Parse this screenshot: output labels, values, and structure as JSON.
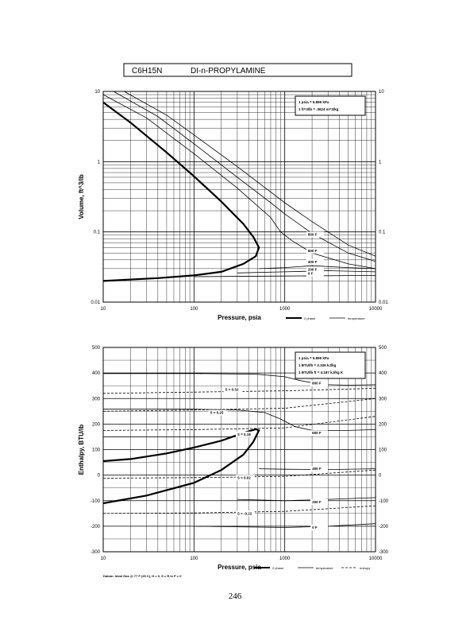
{
  "header": {
    "formula": "C6H15N",
    "name": "DI-n-PROPYLAMINE"
  },
  "page_number": "246",
  "chart_data": [
    {
      "type": "line",
      "xscale": "log",
      "yscale": "log",
      "xlim": [
        10,
        10000
      ],
      "ylim": [
        0.01,
        10
      ],
      "xlabel": "Pressure,  psia",
      "ylabel": "Volume,  ft^3/lb",
      "x_ticks": [
        "10",
        "100",
        "1000",
        "10000"
      ],
      "y_ticks": [
        "0.01",
        "0.1",
        "1",
        "10"
      ],
      "legend_box": [
        "1 psia  =  6.895 kPa",
        "1 ft^3/lb  =  .0624 m^3/kg"
      ],
      "legend_lines": [
        "2 phase",
        "temperature"
      ],
      "isotherm_labels": [
        {
          "text": "800 F",
          "x": 1800,
          "y": 0.088
        },
        {
          "text": "600 F",
          "x": 1800,
          "y": 0.052
        },
        {
          "text": "400 F",
          "x": 1800,
          "y": 0.036
        },
        {
          "text": "200 F",
          "x": 1800,
          "y": 0.028
        },
        {
          "text": "0 F",
          "x": 1800,
          "y": 0.0245
        }
      ],
      "series": [
        {
          "name": "2 phase",
          "style": "thick",
          "points": [
            [
              10,
              7
            ],
            [
              20,
              3.6
            ],
            [
              50,
              1.35
            ],
            [
              100,
              0.62
            ],
            [
              200,
              0.27
            ],
            [
              350,
              0.13
            ],
            [
              450,
              0.085
            ],
            [
              520,
              0.06
            ],
            [
              480,
              0.045
            ],
            [
              350,
              0.035
            ],
            [
              200,
              0.027
            ],
            [
              100,
              0.024
            ],
            [
              40,
              0.022
            ],
            [
              10,
              0.02
            ]
          ]
        },
        {
          "name": "temperature",
          "style": "thin",
          "points": [
            [
              10,
              9
            ],
            [
              30,
              4.2
            ],
            [
              100,
              1.3
            ],
            [
              300,
              0.42
            ],
            [
              700,
              0.16
            ],
            [
              900,
              0.1
            ],
            [
              1200,
              0.075
            ],
            [
              2000,
              0.05
            ],
            [
              5000,
              0.035
            ],
            [
              10000,
              0.03
            ]
          ]
        },
        {
          "name": "temperature",
          "style": "thin",
          "points": [
            [
              13,
              10
            ],
            [
              40,
              4.4
            ],
            [
              100,
              1.8
            ],
            [
              300,
              0.6
            ],
            [
              700,
              0.26
            ],
            [
              1000,
              0.18
            ],
            [
              2000,
              0.095
            ],
            [
              5000,
              0.05
            ],
            [
              10000,
              0.038
            ]
          ]
        },
        {
          "name": "temperature",
          "style": "thin",
          "points": [
            [
              17,
              10
            ],
            [
              50,
              4.6
            ],
            [
              100,
              2.4
            ],
            [
              300,
              0.85
            ],
            [
              1000,
              0.26
            ],
            [
              2000,
              0.14
            ],
            [
              5000,
              0.065
            ],
            [
              10000,
              0.045
            ]
          ]
        },
        {
          "name": "temperature",
          "style": "thin",
          "points": [
            [
              520,
              0.03
            ],
            [
              1000,
              0.031
            ],
            [
              2000,
              0.033
            ],
            [
              5000,
              0.031
            ],
            [
              10000,
              0.03
            ]
          ]
        },
        {
          "name": "temperature",
          "style": "thin",
          "points": [
            [
              300,
              0.026
            ],
            [
              1000,
              0.027
            ],
            [
              3000,
              0.028
            ],
            [
              10000,
              0.027
            ]
          ]
        },
        {
          "name": "temperature",
          "style": "thin",
          "points": [
            [
              100,
              0.023
            ],
            [
              1000,
              0.0235
            ],
            [
              10000,
              0.024
            ]
          ]
        }
      ]
    },
    {
      "type": "line",
      "xscale": "log",
      "yscale": "linear",
      "xlim": [
        10,
        10000
      ],
      "ylim": [
        -300,
        500
      ],
      "xlabel": "Pressure,  psia",
      "ylabel": "Enthalpy,  BTU/lb",
      "x_ticks": [
        "10",
        "100",
        "1000",
        "10000"
      ],
      "y_ticks": [
        "-300",
        "-200",
        "-100",
        "0",
        "100",
        "200",
        "300",
        "400",
        "500"
      ],
      "legend_box": [
        "1 psia  =  6.895 kPa",
        "1 BTU/lb  =  2.326 kJ/kg",
        "1 BTU/lb ft  =  4.187 kJ/kg K"
      ],
      "legend_lines": [
        "2 phase",
        "temperature",
        "entropy"
      ],
      "footnote": "Datum: Ideal Gas @ 77 F (25 C),  H = 0,  S = R ln P = 0",
      "isotherm_labels": [
        {
          "text": "800 F",
          "x": 2000,
          "y": 355
        },
        {
          "text": "600 F",
          "x": 2000,
          "y": 160
        },
        {
          "text": "400 F",
          "x": 2000,
          "y": 20
        },
        {
          "text": "200 F",
          "x": 2000,
          "y": -110
        },
        {
          "text": "0 F",
          "x": 2000,
          "y": -210
        }
      ],
      "entropy_labels": [
        {
          "text": "S = 0.32",
          "x": 220,
          "y": 330
        },
        {
          "text": "S = 0.25",
          "x": 150,
          "y": 240
        },
        {
          "text": "S = 0.18",
          "x": 300,
          "y": 155
        },
        {
          "text": "S = 0.02",
          "x": 300,
          "y": -15
        },
        {
          "text": "S = -0.22",
          "x": 300,
          "y": -155
        }
      ],
      "series": [
        {
          "name": "2 phase",
          "style": "thick",
          "points": [
            [
              10,
              -110
            ],
            [
              30,
              -80
            ],
            [
              100,
              -30
            ],
            [
              200,
              20
            ],
            [
              350,
              80
            ],
            [
              450,
              130
            ],
            [
              520,
              175
            ],
            [
              480,
              180
            ],
            [
              350,
              165
            ],
            [
              200,
              135
            ],
            [
              100,
              108
            ],
            [
              50,
              85
            ],
            [
              20,
              63
            ],
            [
              10,
              55
            ]
          ]
        },
        {
          "name": "temperature",
          "style": "thin",
          "points": [
            [
              10,
              398
            ],
            [
              100,
              398
            ],
            [
              500,
              395
            ],
            [
              1000,
              385
            ],
            [
              1500,
              370
            ],
            [
              2500,
              355
            ],
            [
              5000,
              352
            ],
            [
              10000,
              354
            ]
          ]
        },
        {
          "name": "temperature",
          "style": "thin",
          "points": [
            [
              10,
              258
            ],
            [
              100,
              258
            ],
            [
              300,
              255
            ],
            [
              600,
              245
            ],
            [
              900,
              220
            ],
            [
              1300,
              190
            ],
            [
              2000,
              175
            ],
            [
              5000,
              175
            ],
            [
              10000,
              178
            ]
          ]
        },
        {
          "name": "temperature",
          "style": "thin",
          "points": [
            [
              10,
              150
            ],
            [
              100,
              150
            ],
            [
              200,
              150
            ],
            [
              450,
              150
            ]
          ]
        },
        {
          "name": "temperature",
          "style": "thin",
          "points": [
            [
              520,
              25
            ],
            [
              1000,
              23
            ],
            [
              3000,
              22
            ],
            [
              10000,
              25
            ]
          ]
        },
        {
          "name": "temperature",
          "style": "thin",
          "points": [
            [
              300,
              -95
            ],
            [
              1000,
              -100
            ],
            [
              3000,
              -95
            ],
            [
              10000,
              -88
            ]
          ]
        },
        {
          "name": "temperature",
          "style": "thin",
          "points": [
            [
              100,
              -200
            ],
            [
              1000,
              -205
            ],
            [
              3000,
              -200
            ],
            [
              10000,
              -190
            ]
          ]
        },
        {
          "name": "entropy",
          "style": "dashed",
          "points": [
            [
              10,
              320
            ],
            [
              100,
              325
            ],
            [
              1000,
              330
            ],
            [
              10000,
              340
            ]
          ]
        },
        {
          "name": "entropy",
          "style": "dashed",
          "points": [
            [
              10,
              250
            ],
            [
              100,
              255
            ],
            [
              1000,
              262
            ],
            [
              10000,
              300
            ]
          ]
        },
        {
          "name": "entropy",
          "style": "dashed",
          "points": [
            [
              10,
              175
            ],
            [
              100,
              178
            ],
            [
              1000,
              185
            ],
            [
              10000,
              230
            ]
          ]
        },
        {
          "name": "entropy",
          "style": "dashed",
          "points": [
            [
              10,
              -12
            ],
            [
              100,
              -10
            ],
            [
              1000,
              -5
            ],
            [
              10000,
              20
            ]
          ]
        },
        {
          "name": "entropy",
          "style": "dashed",
          "points": [
            [
              10,
              -150
            ],
            [
              100,
              -148
            ],
            [
              1000,
              -142
            ],
            [
              10000,
              -120
            ]
          ]
        }
      ]
    }
  ]
}
